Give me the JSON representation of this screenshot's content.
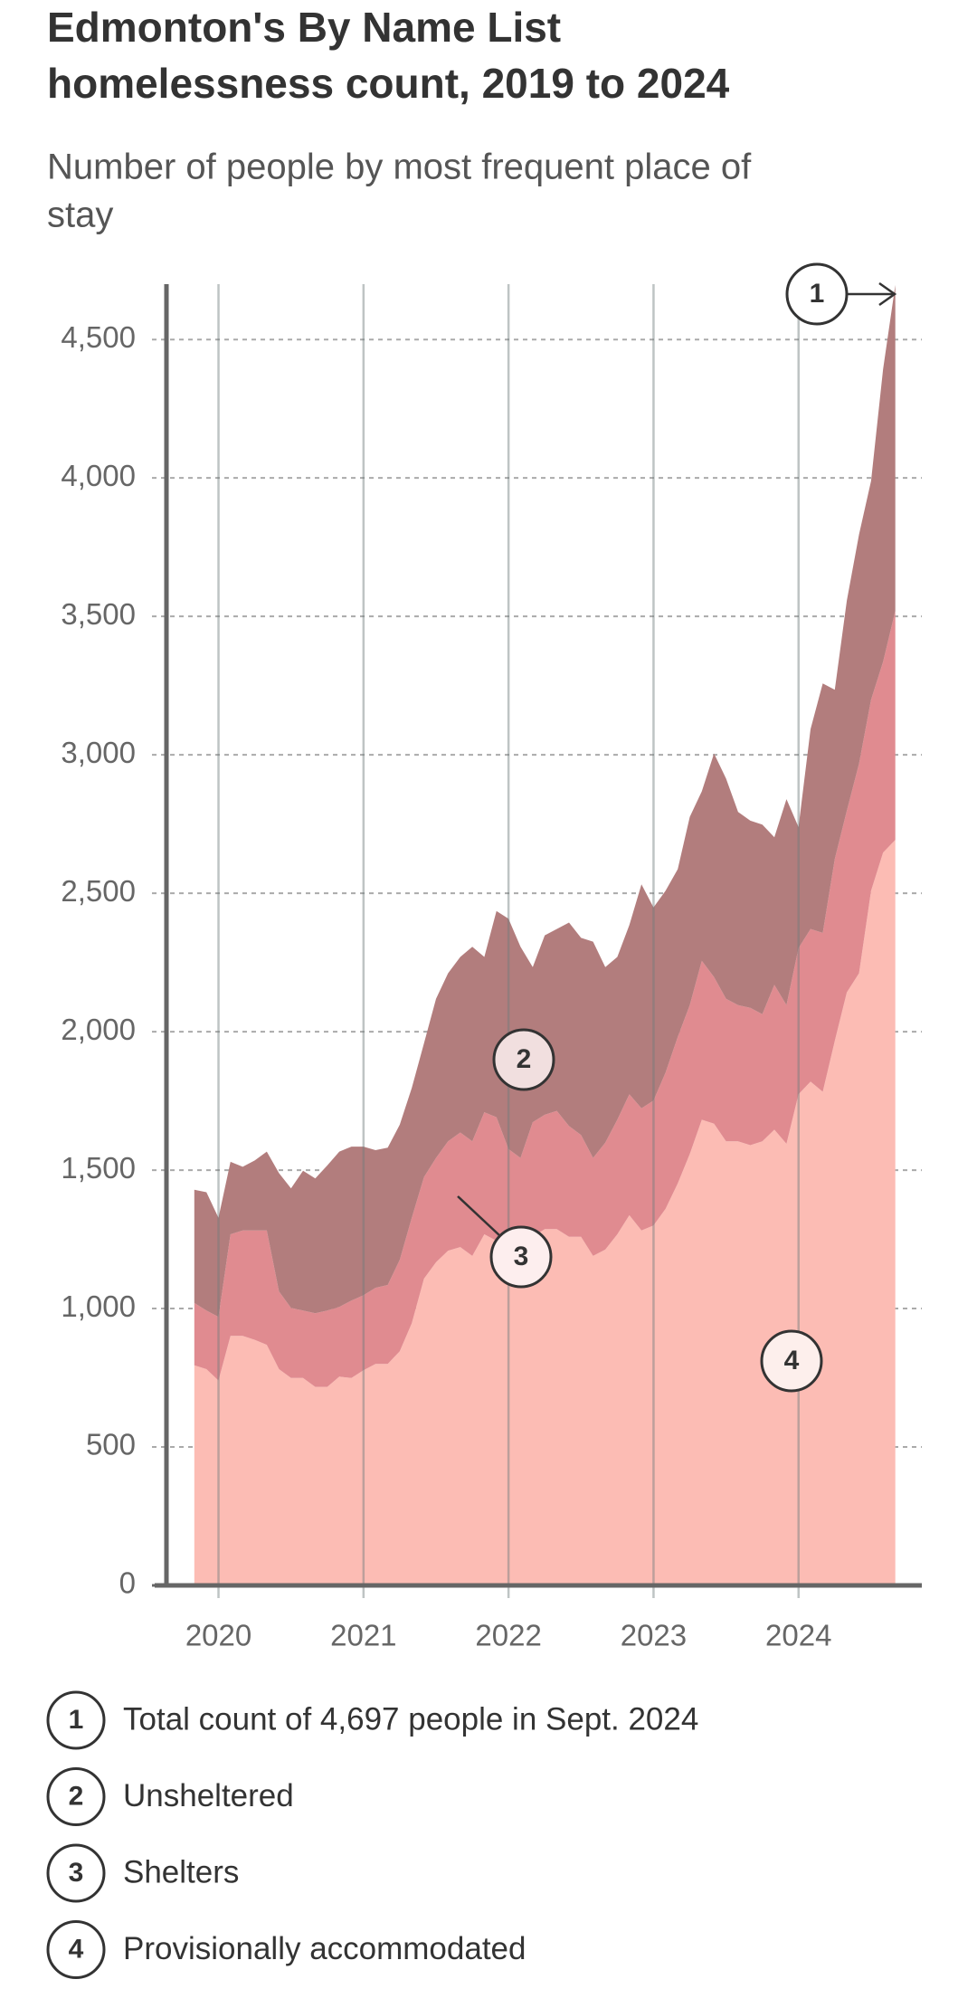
{
  "chart_data": {
    "type": "stacked_area",
    "title_lines": [
      "Edmonton's By Name List",
      "homelessness count, 2019 to 2024"
    ],
    "subtitle_lines": [
      "Number of people by most frequent place of",
      "stay"
    ],
    "x": [
      2019.833,
      2019.917,
      2020,
      2020.083,
      2020.167,
      2020.25,
      2020.333,
      2020.417,
      2020.5,
      2020.583,
      2020.667,
      2020.75,
      2020.833,
      2020.917,
      2021,
      2021.083,
      2021.167,
      2021.25,
      2021.333,
      2021.417,
      2021.5,
      2021.583,
      2021.667,
      2021.75,
      2021.833,
      2021.917,
      2022,
      2022.083,
      2022.167,
      2022.25,
      2022.333,
      2022.417,
      2022.5,
      2022.583,
      2022.667,
      2022.75,
      2022.833,
      2022.917,
      2023,
      2023.083,
      2023.167,
      2023.25,
      2023.333,
      2023.417,
      2023.5,
      2023.583,
      2023.667,
      2023.75,
      2023.833,
      2023.917,
      2024,
      2024.083,
      2024.167,
      2024.25,
      2024.333,
      2024.417,
      2024.5,
      2024.583,
      2024.667
    ],
    "xlim": [
      2019.56,
      2024.85
    ],
    "xticks": [
      2020,
      2021,
      2022,
      2023,
      2024
    ],
    "ylim": [
      0,
      4700
    ],
    "yticks": [
      0,
      500,
      {
        "value": 1000,
        "label": "1,000"
      },
      {
        "value": 1500,
        "label": "1,500"
      },
      {
        "value": 2000,
        "label": "2,000"
      },
      {
        "value": 2500,
        "label": "2,500"
      },
      {
        "value": 3000,
        "label": "3,000"
      },
      {
        "value": 3500,
        "label": "3,500"
      },
      {
        "value": 4000,
        "label": "4,000"
      },
      {
        "value": 4500,
        "label": "4,500"
      }
    ],
    "grid": true,
    "total_note": {
      "marker": "1",
      "text": "Total count of 4,697 people in Sept. 2024"
    },
    "series": [
      {
        "name": "Unsheltered",
        "marker": "2",
        "color": "#b27d7d",
        "values": [
          409,
          427,
          358,
          262,
          230,
          253,
          285,
          427,
          432,
          505,
          487,
          524,
          561,
          556,
          537,
          497,
          496,
          488,
          469,
          483,
          575,
          607,
          634,
          703,
          561,
          745,
          832,
          763,
          560,
          648,
          657,
          735,
          712,
          781,
          634,
          588,
          611,
          809,
          698,
          657,
          606,
          680,
          612,
          808,
          795,
          698,
          676,
          685,
          533,
          744,
          437,
          722,
          901,
          611,
          759,
          828,
          790,
          1057,
          1177
        ]
      },
      {
        "name": "Shelters",
        "marker": "3",
        "color": "#e08b90",
        "values": [
          225,
          212,
          230,
          367,
          381,
          395,
          413,
          281,
          253,
          244,
          266,
          276,
          252,
          280,
          271,
          275,
          285,
          330,
          381,
          367,
          377,
          395,
          414,
          414,
          441,
          446,
          372,
          257,
          414,
          413,
          427,
          400,
          368,
          354,
          386,
          414,
          437,
          441,
          451,
          492,
          529,
          538,
          574,
          529,
          515,
          492,
          496,
          459,
          523,
          501,
          528,
          551,
          574,
          657,
          656,
          757,
          690,
          689,
          827
        ]
      },
      {
        "name": "Provisionally accommodated",
        "marker": "4",
        "color": "#fcbcb4",
        "values": [
          795,
          781,
          740,
          901,
          901,
          887,
          869,
          781,
          749,
          749,
          717,
          717,
          754,
          749,
          777,
          800,
          800,
          846,
          947,
          1108,
          1167,
          1209,
          1222,
          1190,
          1268,
          1245,
          1204,
          1287,
          1259,
          1287,
          1287,
          1259,
          1259,
          1190,
          1213,
          1268,
          1337,
          1282,
          1300,
          1360,
          1452,
          1558,
          1682,
          1668,
          1604,
          1604,
          1590,
          1604,
          1646,
          1595,
          1774,
          1820,
          1783,
          1967,
          2142,
          2211,
          2509,
          2647,
          2693
        ]
      }
    ]
  }
}
